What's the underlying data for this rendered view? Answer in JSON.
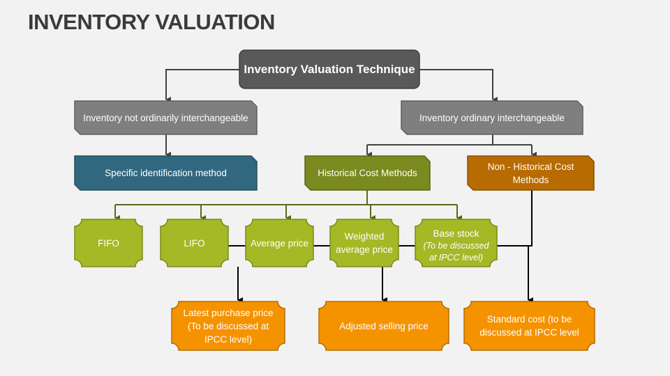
{
  "title": "INVENTORY VALUATION",
  "colors": {
    "root": "#595959",
    "category": "#7f7f7f",
    "specific": "#31687f",
    "historical": "#7a8a1e",
    "non_historical": "#b86b00",
    "method": "#a5b825",
    "sub_method": "#f59200"
  },
  "nodes": {
    "root": "Inventory Valuation Technique",
    "not_interchangeable": "Inventory not ordinarily interchangeable",
    "interchangeable": "Inventory ordinary interchangeable",
    "specific": "Specific identification method",
    "historical": "Historical Cost Methods",
    "non_historical": "Non - Historical Cost Methods",
    "fifo": "FIFO",
    "lifo": "LIFO",
    "average": "Average price",
    "weighted": "Weighted average price",
    "base_stock": "Base stock",
    "base_stock_note": "(To be discussed at IPCC level)",
    "latest_purchase": "Latest purchase price (To be discussed at IPCC level)",
    "adjusted_selling": "Adjusted selling price",
    "standard_cost": "Standard cost (to be discussed at IPCC level"
  }
}
